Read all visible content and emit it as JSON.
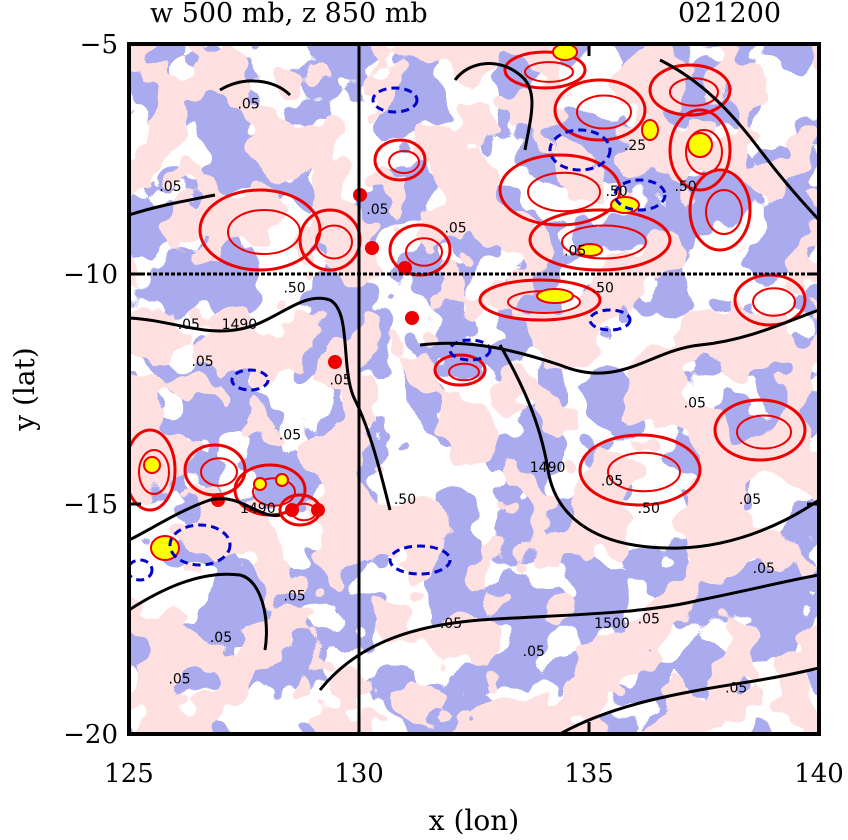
{
  "chart_data": {
    "type": "contour-map",
    "title": "w 500 mb, z 850 mb",
    "timestamp": "021200",
    "xlabel": "x (lon)",
    "ylabel": "y (lat)",
    "xlim": [
      125,
      140
    ],
    "ylim": [
      -20,
      -5
    ],
    "x_ticks": [
      125,
      130,
      135,
      140
    ],
    "x_tick_labels": [
      "125",
      "130",
      "135",
      "140"
    ],
    "y_ticks": [
      -5,
      -10,
      -15,
      -20
    ],
    "y_tick_labels": [
      "−5",
      "−10",
      "−15",
      "−20"
    ],
    "reference_lines": {
      "x": 130,
      "y": -10
    },
    "colors": {
      "negative_fill": "#aaaaee",
      "positive_fill": "#f8c0c0",
      "strong_positive_fill": "#ffff00",
      "positive_contour": "#ee0000",
      "negative_contour": "#0000cc",
      "height_contour": "#000000"
    },
    "w_contour_labels": [
      {
        "x": 125.9,
        "y": -8.2,
        "text": ".05"
      },
      {
        "x": 126.6,
        "y": -12.0,
        "text": ".05"
      },
      {
        "x": 127.6,
        "y": -6.4,
        "text": ".05"
      },
      {
        "x": 130.4,
        "y": -8.7,
        "text": ".05"
      },
      {
        "x": 132.1,
        "y": -9.1,
        "text": ".05"
      },
      {
        "x": 134.7,
        "y": -9.6,
        "text": ".05"
      },
      {
        "x": 135.3,
        "y": -10.4,
        "text": ".50"
      },
      {
        "x": 135.6,
        "y": -8.3,
        "text": ".50"
      },
      {
        "x": 137.1,
        "y": -8.2,
        "text": ".50"
      },
      {
        "x": 136.0,
        "y": -7.3,
        "text": ".25"
      },
      {
        "x": 137.3,
        "y": -12.9,
        "text": ".05"
      },
      {
        "x": 138.5,
        "y": -15.0,
        "text": ".05"
      },
      {
        "x": 135.5,
        "y": -14.6,
        "text": ".05"
      },
      {
        "x": 136.3,
        "y": -15.2,
        "text": ".50"
      },
      {
        "x": 138.8,
        "y": -16.5,
        "text": ".05"
      },
      {
        "x": 128.6,
        "y": -17.1,
        "text": ".05"
      },
      {
        "x": 127.0,
        "y": -18.0,
        "text": ".05"
      },
      {
        "x": 126.1,
        "y": -18.9,
        "text": ".05"
      },
      {
        "x": 132.0,
        "y": -17.7,
        "text": ".05"
      },
      {
        "x": 133.8,
        "y": -18.3,
        "text": ".05"
      },
      {
        "x": 136.3,
        "y": -17.6,
        "text": ".05"
      },
      {
        "x": 138.2,
        "y": -19.1,
        "text": ".05"
      },
      {
        "x": 131.0,
        "y": -15.0,
        "text": ".50"
      },
      {
        "x": 128.5,
        "y": -13.6,
        "text": ".05"
      },
      {
        "x": 129.6,
        "y": -12.4,
        "text": ".05"
      },
      {
        "x": 126.3,
        "y": -11.2,
        "text": ".05"
      },
      {
        "x": 128.6,
        "y": -10.4,
        "text": ".50"
      }
    ],
    "height_contours": [
      {
        "level": 1490,
        "label": "1490",
        "label_at": [
          127.4,
          -11.2
        ]
      },
      {
        "level": 1490,
        "label": "1490",
        "label_at": [
          134.1,
          -14.3
        ]
      },
      {
        "level": 1490,
        "label": "1490",
        "label_at": [
          127.8,
          -15.2
        ]
      },
      {
        "level": 1500,
        "label": "1500",
        "label_at": [
          135.5,
          -17.7
        ]
      }
    ]
  }
}
